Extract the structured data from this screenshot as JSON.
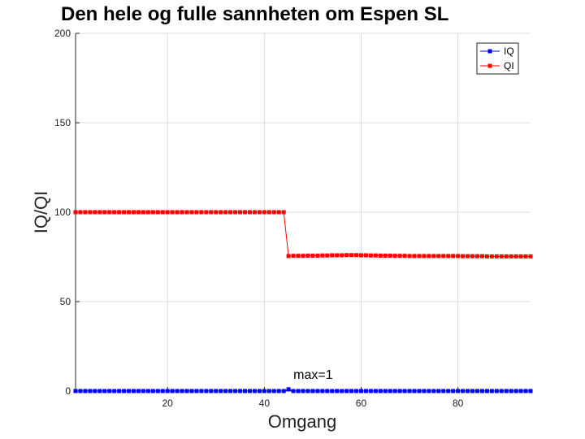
{
  "chart_data": {
    "type": "line",
    "title": "Den hele og fulle sannheten om Espen SL",
    "xlabel": "Omgang",
    "ylabel": "IQ/QI",
    "xlim": [
      1,
      95
    ],
    "ylim": [
      0,
      200
    ],
    "xticks": [
      20,
      40,
      60,
      80
    ],
    "yticks": [
      0,
      50,
      100,
      150,
      200
    ],
    "grid": true,
    "legend_position": "top-right",
    "x": [
      1,
      2,
      3,
      4,
      5,
      6,
      7,
      8,
      9,
      10,
      11,
      12,
      13,
      14,
      15,
      16,
      17,
      18,
      19,
      20,
      21,
      22,
      23,
      24,
      25,
      26,
      27,
      28,
      29,
      30,
      31,
      32,
      33,
      34,
      35,
      36,
      37,
      38,
      39,
      40,
      41,
      42,
      43,
      44,
      45,
      46,
      47,
      48,
      49,
      50,
      51,
      52,
      53,
      54,
      55,
      56,
      57,
      58,
      59,
      60,
      61,
      62,
      63,
      64,
      65,
      66,
      67,
      68,
      69,
      70,
      71,
      72,
      73,
      74,
      75,
      76,
      77,
      78,
      79,
      80,
      81,
      82,
      83,
      84,
      85,
      86,
      87,
      88,
      89,
      90,
      91,
      92,
      93,
      94,
      95
    ],
    "series": [
      {
        "name": "IQ",
        "color": "#0000ff",
        "values": [
          0,
          0,
          0,
          0,
          0,
          0,
          0,
          0,
          0,
          0,
          0,
          0,
          0,
          0,
          0,
          0,
          0,
          0,
          0,
          0,
          0,
          0,
          0,
          0,
          0,
          0,
          0,
          0,
          0,
          0,
          0,
          0,
          0,
          0,
          0,
          0,
          0,
          0,
          0,
          0,
          0,
          0,
          0,
          0,
          1,
          0,
          0,
          0,
          0,
          0,
          0,
          0,
          0,
          0,
          0,
          0,
          0,
          0,
          0,
          0,
          0,
          0,
          0,
          0,
          0,
          0,
          0,
          0,
          0,
          0,
          0,
          0,
          0,
          0,
          0,
          0,
          0,
          0,
          0,
          0,
          0,
          0,
          0,
          0,
          0,
          0,
          0,
          0,
          0,
          0,
          0,
          0,
          0,
          0,
          0
        ]
      },
      {
        "name": "QI",
        "color": "#ff0000",
        "values": [
          100,
          100,
          100,
          100,
          100,
          100,
          100,
          100,
          100,
          100,
          100,
          100,
          100,
          100,
          100,
          100,
          100,
          100,
          100,
          100,
          100,
          100,
          100,
          100,
          100,
          100,
          100,
          100,
          100,
          100,
          100,
          100,
          100,
          100,
          100,
          100,
          100,
          100,
          100,
          100,
          100,
          100,
          100,
          100,
          75.5,
          75.6,
          75.6,
          75.6,
          75.7,
          75.7,
          75.7,
          75.8,
          75.8,
          75.9,
          75.9,
          75.9,
          76,
          76,
          76,
          75.9,
          75.9,
          75.8,
          75.8,
          75.7,
          75.7,
          75.7,
          75.6,
          75.6,
          75.6,
          75.5,
          75.5,
          75.5,
          75.5,
          75.5,
          75.5,
          75.5,
          75.5,
          75.5,
          75.5,
          75.5,
          75.4,
          75.4,
          75.4,
          75.4,
          75.4,
          75.3,
          75.3,
          75.3,
          75.3,
          75.3,
          75.3,
          75.3,
          75.3,
          75.3,
          75.3
        ]
      }
    ],
    "annotations": [
      {
        "text": "max=1",
        "x": 45,
        "y": 1
      }
    ]
  }
}
